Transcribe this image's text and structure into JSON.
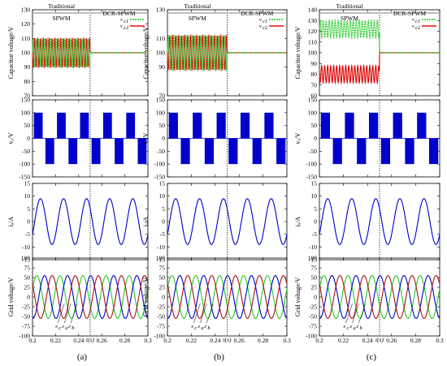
{
  "figure": {
    "columns": [
      {
        "label": "(a)"
      },
      {
        "label": "(b)"
      },
      {
        "label": "(c)"
      }
    ]
  },
  "colors": {
    "vc1": "#22cc22",
    "vc2": "#dd1111",
    "blue": "#0000cc",
    "grid_a": "#22cc22",
    "grid_b": "#0000cc",
    "grid_c": "#aa1111"
  },
  "chart_data": [
    {
      "type": "line",
      "panel": "capacitor-voltage",
      "ylabel": "Capacitor voltage/V",
      "header_left": "Traditional SPWM",
      "header_right": "DCR-SPWM",
      "legend": [
        "vc1",
        "vc2"
      ],
      "legend_text": [
        "v c1",
        "v c2"
      ],
      "switch_time": 0.25,
      "xlim": [
        0.2,
        0.3
      ],
      "columns": [
        {
          "yticks": [
            70,
            80,
            90,
            100,
            110,
            120,
            130
          ],
          "ylim": [
            70,
            130
          ],
          "vc1_before": {
            "center": 100,
            "amplitude": 10
          },
          "vc2_before": {
            "center": 100,
            "amplitude": 10
          },
          "after": 100,
          "freq_hz": 400
        },
        {
          "yticks": [
            70,
            90,
            100,
            110,
            130
          ],
          "ylim": [
            70,
            130
          ],
          "vc1_before": {
            "center": 100,
            "amplitude": 12
          },
          "vc2_before": {
            "center": 100,
            "amplitude": 12
          },
          "after": 100,
          "freq_hz": 400
        },
        {
          "yticks": [
            60,
            70,
            80,
            90,
            100,
            110,
            120,
            130,
            140
          ],
          "ylim": [
            60,
            140
          ],
          "vc1_before": {
            "center": 122,
            "amplitude": 8
          },
          "vc2_before": {
            "center": 80,
            "amplitude": 8
          },
          "after": 100,
          "freq_hz": 400
        }
      ]
    },
    {
      "type": "area",
      "panel": "phase-voltage",
      "ylabel": "vA/V",
      "yticks": [
        -150,
        -100,
        -50,
        0,
        50,
        100,
        150
      ],
      "ylim": [
        -150,
        150
      ],
      "xlim": [
        0.2,
        0.3
      ],
      "pulse_level": 100,
      "fundamental_hz": 50
    },
    {
      "type": "line",
      "panel": "current",
      "ylabel": "iA/A",
      "yticks": [
        -15,
        -10,
        -5,
        0,
        5,
        10,
        15
      ],
      "ylim": [
        -15,
        15
      ],
      "xlim": [
        0.2,
        0.3
      ],
      "amplitude": 9,
      "fundamental_hz": 50
    },
    {
      "type": "line",
      "panel": "grid-voltage",
      "ylabel": "Grid voltage/V",
      "yticks": [
        -100,
        -75,
        -50,
        -25,
        0,
        25,
        50,
        75,
        100
      ],
      "ylim": [
        -100,
        100
      ],
      "xlim": [
        0.2,
        0.3
      ],
      "xticks": [
        0.2,
        0.22,
        0.24,
        0.26,
        0.28,
        0.3
      ],
      "xtick_labels": [
        "0.2",
        "0.22",
        "0.24",
        "0.26",
        "0.28",
        "0.3"
      ],
      "xlabel": "t(s)",
      "amplitude": 55,
      "fundamental_hz": 50,
      "series": [
        {
          "name": "ec",
          "color_key": "grid_a"
        },
        {
          "name": "ea",
          "color_key": "grid_b"
        },
        {
          "name": "eb",
          "color_key": "grid_c"
        }
      ],
      "annotation": "ec ea eb"
    }
  ]
}
